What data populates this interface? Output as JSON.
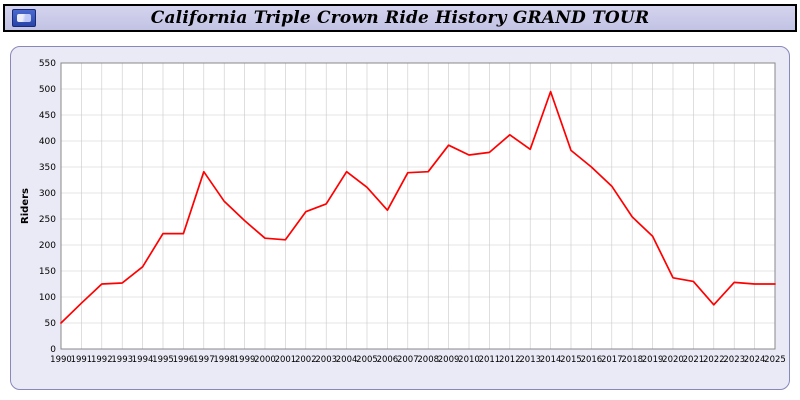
{
  "header": {
    "title": "California Triple Crown Ride History GRAND TOUR",
    "logo_icon": "site-logo-icon"
  },
  "chart_data": {
    "type": "line",
    "title": "California Triple Crown Ride History GRAND TOUR",
    "xlabel": "",
    "ylabel": "Riders",
    "ylim": [
      0,
      550
    ],
    "ytick_step": 50,
    "grid": true,
    "legend_position": "none",
    "line_color": "#ff0000",
    "plot_background": "#ffffff",
    "panel_background": "#eaeaf6",
    "grid_color": "#c9c9c9",
    "x": [
      1990,
      1991,
      1992,
      1993,
      1994,
      1995,
      1996,
      1997,
      1998,
      1999,
      2000,
      2001,
      2002,
      2003,
      2004,
      2005,
      2006,
      2007,
      2008,
      2009,
      2010,
      2011,
      2012,
      2013,
      2014,
      2015,
      2016,
      2017,
      2018,
      2019,
      2020,
      2021,
      2022,
      2023,
      2024,
      2025
    ],
    "values": [
      50,
      88,
      125,
      127,
      158,
      222,
      222,
      341,
      284,
      247,
      213,
      210,
      264,
      279,
      341,
      311,
      267,
      339,
      341,
      392,
      373,
      378,
      412,
      384,
      495,
      382,
      350,
      313,
      254,
      217,
      137,
      130,
      85,
      128,
      125,
      125
    ]
  }
}
